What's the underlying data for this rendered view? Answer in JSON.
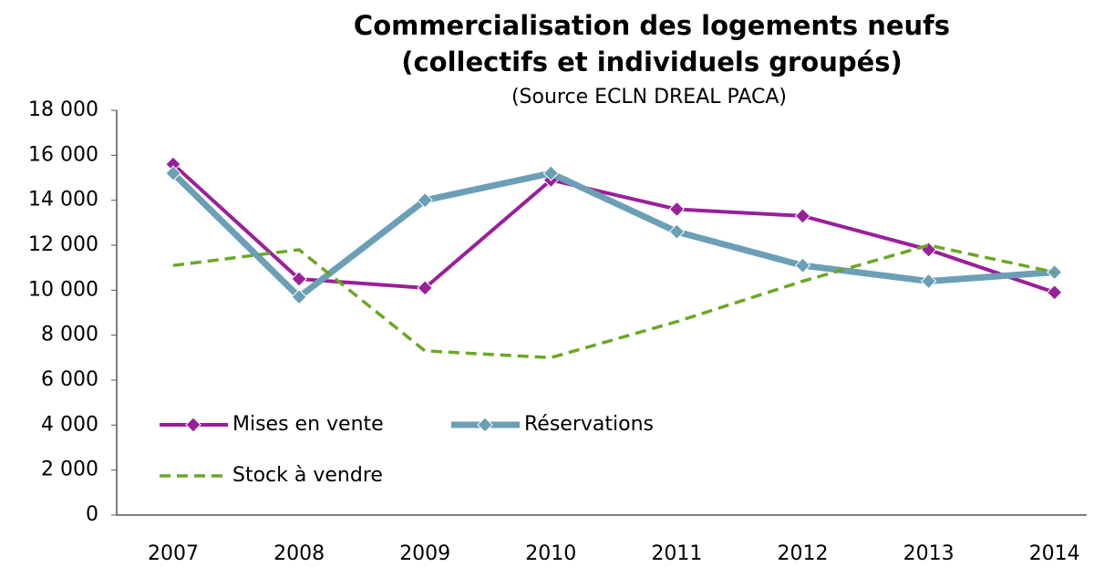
{
  "chart_data": {
    "type": "line",
    "title": [
      "Commercialisation des logements neufs",
      "(collectifs et individuels groupés)"
    ],
    "subtitle": "(Source ECLN DREAL PACA)",
    "categories": [
      "2007",
      "2008",
      "2009",
      "2010",
      "2011",
      "2012",
      "2013",
      "2014"
    ],
    "series": [
      {
        "name": "Mises en vente",
        "color": "#9a1f9a",
        "marker": true,
        "dashed": false,
        "values": [
          15600,
          10500,
          10100,
          14900,
          13600,
          13300,
          11800,
          9900
        ]
      },
      {
        "name": "Réservations",
        "color": "#6b9fb6",
        "marker": true,
        "dashed": false,
        "values": [
          15200,
          9700,
          14000,
          15200,
          12600,
          11100,
          10400,
          10800
        ]
      },
      {
        "name": "Stock à vendre",
        "color": "#6aa823",
        "marker": false,
        "dashed": true,
        "values": [
          11100,
          11800,
          7300,
          7000,
          8600,
          10400,
          12000,
          10800
        ]
      }
    ],
    "ylim": [
      0,
      18000
    ],
    "yticks": [
      0,
      {
        "value": 2000,
        "label": "2 000"
      },
      {
        "value": 4000,
        "label": "4 000"
      },
      {
        "value": 6000,
        "label": "6 000"
      },
      {
        "value": 8000,
        "label": "8 000"
      },
      {
        "value": 10000,
        "label": "10 000"
      },
      {
        "value": 12000,
        "label": "12 000"
      },
      {
        "value": 14000,
        "label": "14 000"
      },
      {
        "value": 16000,
        "label": "16 000"
      },
      {
        "value": 18000,
        "label": "18 000"
      }
    ],
    "grid": false,
    "legend": "lower left"
  }
}
